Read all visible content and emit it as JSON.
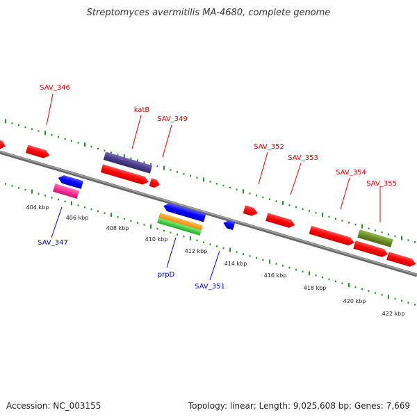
{
  "title": "Streptomyces avermitilis MA-4680, complete genome",
  "footer": {
    "accession": "Accession: NC_003155",
    "topology": "Topology: linear; Length: 9,025,608 bp; Genes: 7,669"
  },
  "colors": {
    "backbone": "#8c8c8c",
    "dots": "#2e8b2e",
    "forward_label": "#dd0000",
    "reverse_label": "#0000cc"
  },
  "ruler": [
    "404 kbp",
    "406 kbp",
    "408 kbp",
    "410 kbp",
    "412 kbp",
    "414 kbp",
    "416 kbp",
    "418 kbp",
    "420 kbp",
    "422 kbp"
  ],
  "labels": [
    {
      "key": "sav346",
      "text": "SAV_346",
      "strand": "forward"
    },
    {
      "key": "katb",
      "text": "katB",
      "strand": "forward"
    },
    {
      "key": "sav349",
      "text": "SAV_349",
      "strand": "forward"
    },
    {
      "key": "sav352",
      "text": "SAV_352",
      "strand": "forward"
    },
    {
      "key": "sav353",
      "text": "SAV_353",
      "strand": "forward"
    },
    {
      "key": "sav354",
      "text": "SAV_354",
      "strand": "forward"
    },
    {
      "key": "sav355",
      "text": "SAV_355",
      "strand": "forward"
    },
    {
      "key": "sav347",
      "text": "SAV_347",
      "strand": "reverse"
    },
    {
      "key": "prpd",
      "text": "prpD",
      "strand": "reverse"
    },
    {
      "key": "sav351",
      "text": "SAV_351",
      "strand": "reverse"
    }
  ],
  "features": {
    "forward_gene": "#ff0000",
    "reverse_gene": "#0000ff",
    "purple_feature": "#4b3c8c",
    "pink_feature": "#ff3399",
    "orange_feature": "#ff9900",
    "green_feature": "#33cc33",
    "olive_feature": "#6b8e23"
  }
}
